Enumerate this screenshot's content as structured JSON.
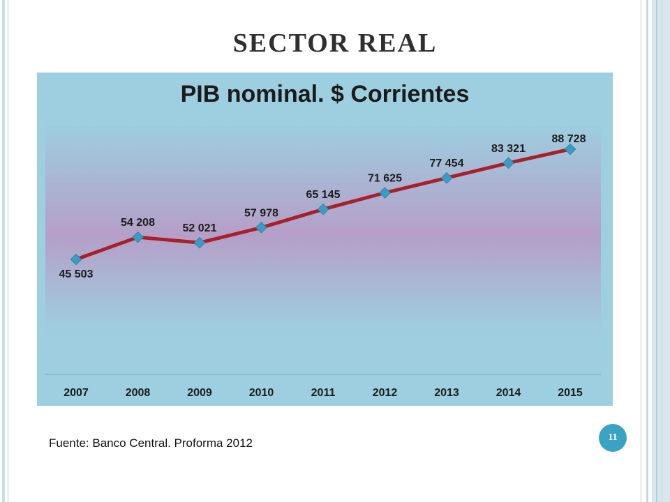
{
  "slide": {
    "title": "SECTOR REAL",
    "source": "Fuente: Banco Central. Proforma 2012",
    "page_number": "11"
  },
  "colors": {
    "chart_background": "#9dcfe0",
    "plot_gradient_mid": "#b59fc7",
    "line": "#a8202a",
    "marker": "#3a9cc6",
    "badge": "#3aa3c4"
  },
  "chart_data": {
    "type": "line",
    "title": "PIB nominal. $ Corrientes",
    "categories": [
      "2007",
      "2008",
      "2009",
      "2010",
      "2011",
      "2012",
      "2013",
      "2014",
      "2015"
    ],
    "series": [
      {
        "values": [
          45503,
          54208,
          52021,
          57978,
          65145,
          71625,
          77454,
          83321,
          88728
        ],
        "data_labels": [
          "45 503",
          "54 208",
          "52 021",
          "57 978",
          "65 145",
          "71 625",
          "77 454",
          "83 321",
          "88 728"
        ]
      }
    ],
    "xlabel": "",
    "ylabel": "",
    "y_axis_visible": false,
    "grid": false,
    "legend": "none"
  }
}
